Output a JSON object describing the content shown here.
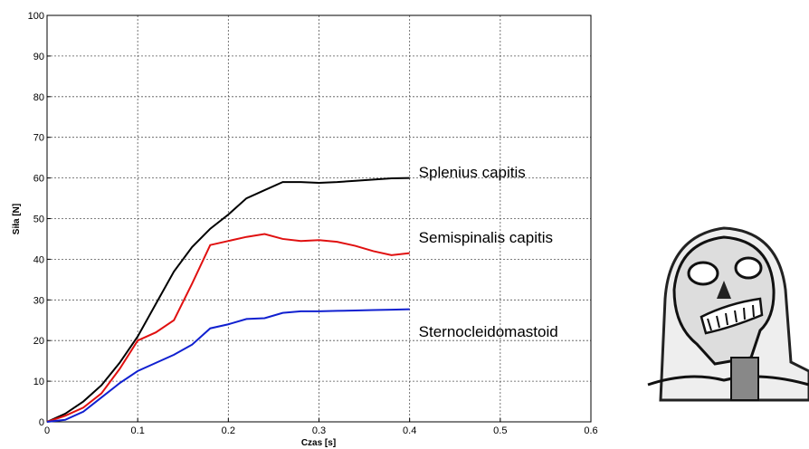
{
  "chart_data": {
    "type": "line",
    "x_label": "Czas [s]",
    "y_label": "Siła [N]",
    "x": [
      0,
      0.02,
      0.04,
      0.06,
      0.08,
      0.1,
      0.12,
      0.14,
      0.16,
      0.18,
      0.2,
      0.22,
      0.24,
      0.26,
      0.28,
      0.3,
      0.32,
      0.34,
      0.36,
      0.38,
      0.4
    ],
    "series": [
      {
        "name": "Splenius capitis",
        "color": "#000000",
        "values": [
          0,
          2,
          5,
          9,
          14.5,
          21,
          29,
          37,
          43,
          47.5,
          51,
          55,
          57,
          59,
          59,
          58.8,
          59,
          59.3,
          59.6,
          59.9,
          60
        ]
      },
      {
        "name": "Semispinalis capitis",
        "color": "#e01010",
        "values": [
          0,
          1.5,
          3.5,
          7,
          13,
          20,
          22,
          25,
          34,
          43.5,
          44.5,
          45.5,
          46.2,
          45,
          44.5,
          44.7,
          44.3,
          43.3,
          42,
          41,
          41.5
        ]
      },
      {
        "name": "Sternocleidomastoid",
        "color": "#1020d0",
        "values": [
          0,
          0.5,
          2.5,
          6,
          9.5,
          12.5,
          14.5,
          16.5,
          19,
          23,
          24,
          25.3,
          25.5,
          26.8,
          27.2,
          27.2,
          27.3,
          27.4,
          27.5,
          27.6,
          27.7
        ]
      }
    ],
    "xlim": [
      0,
      0.6
    ],
    "xticks": [
      0,
      0.1,
      0.2,
      0.3,
      0.4,
      0.5,
      0.6
    ],
    "ylim": [
      0,
      100
    ],
    "yticks": [
      0,
      10,
      20,
      30,
      40,
      50,
      60,
      70,
      80,
      90,
      100
    ],
    "grid": true
  }
}
